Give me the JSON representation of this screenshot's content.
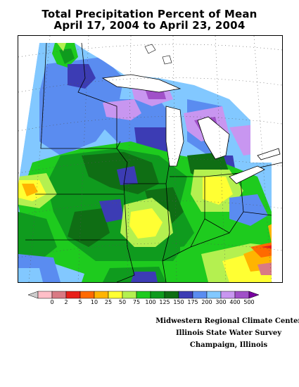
{
  "map": {
    "title_line1": "Total Precipitation Percent of Mean",
    "title_line2": "April 17, 2004 to April 23, 2004",
    "legend": {
      "labels": [
        "0",
        "2",
        "5",
        "10",
        "25",
        "50",
        "75",
        "100",
        "125",
        "150",
        "175",
        "200",
        "300",
        "400",
        "500"
      ],
      "colors": [
        "#ffbfc8",
        "#d97a84",
        "#e8201a",
        "#ff6a00",
        "#ffb400",
        "#ffff33",
        "#b4f050",
        "#1ecb1e",
        "#0f9b1e",
        "#0f6e14",
        "#3c3cb4",
        "#5a8cf0",
        "#82c8ff",
        "#c896f0",
        "#a050c8",
        "#7800a0"
      ]
    },
    "credits": {
      "line1": "Midwestern Regional Climate Center",
      "line2": "Illinois State Water Survey",
      "line3": "Champaign, Illinois"
    }
  }
}
